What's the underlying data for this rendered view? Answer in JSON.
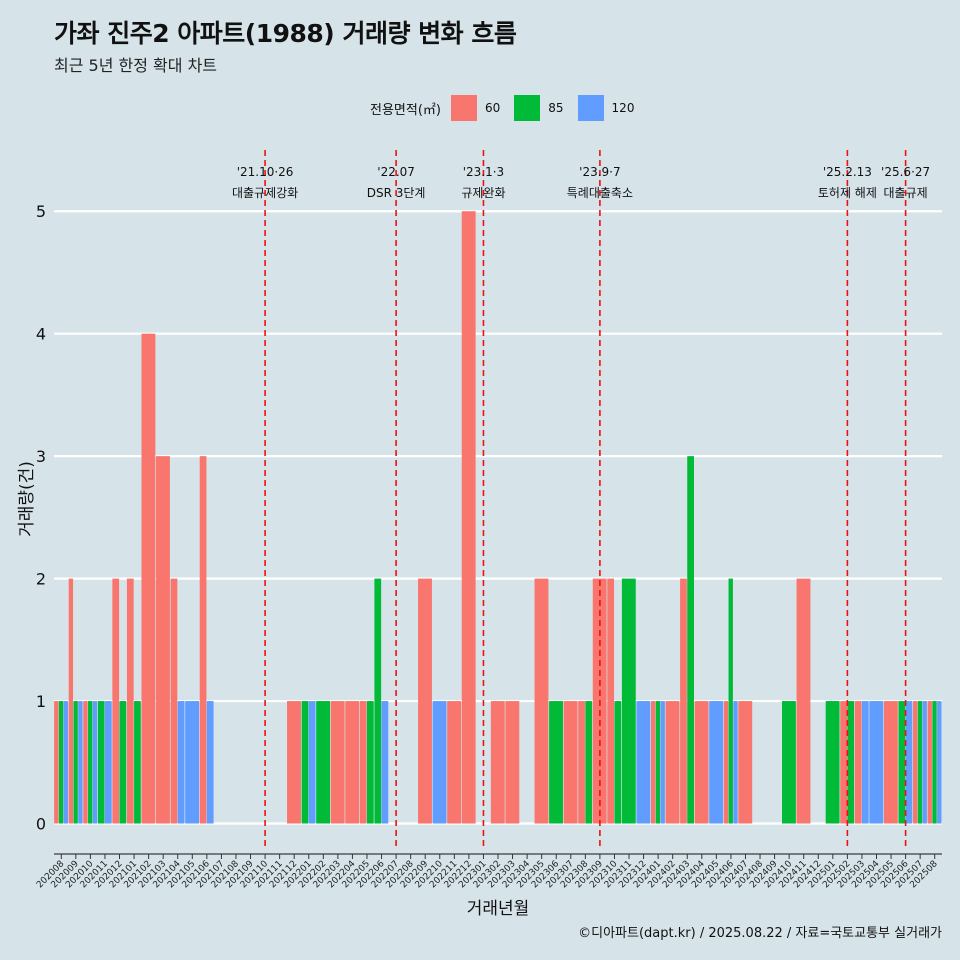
{
  "title": "가좌 진주2 아파트(1988) 거래량 변화 흐름",
  "subtitle": "최근 5년 한정 확대 차트",
  "caption": "©디아파트(dapt.kr) / 2025.08.22 / 자료=국토교통부 실거래가",
  "legend": {
    "title": "전용면적(㎡)",
    "items": [
      {
        "label": "60",
        "color": "#f8766d"
      },
      {
        "label": "85",
        "color": "#00ba38"
      },
      {
        "label": "120",
        "color": "#619cff"
      }
    ]
  },
  "chart_data": {
    "type": "bar",
    "xlabel": "거래년월",
    "ylabel": "거래량(건)",
    "ylim": [
      -0.2,
      5.5
    ],
    "yticks": [
      0,
      1,
      2,
      3,
      4,
      5
    ],
    "grid": true,
    "legend_position": "top",
    "categories": [
      "202008",
      "202009",
      "202010",
      "202011",
      "202012",
      "202101",
      "202102",
      "202103",
      "202104",
      "202105",
      "202106",
      "202107",
      "202108",
      "202109",
      "202110",
      "202111",
      "202112",
      "202201",
      "202202",
      "202203",
      "202204",
      "202205",
      "202206",
      "202207",
      "202208",
      "202209",
      "202210",
      "202211",
      "202212",
      "202301",
      "202302",
      "202303",
      "202304",
      "202305",
      "202306",
      "202307",
      "202308",
      "202309",
      "202310",
      "202311",
      "202312",
      "202401",
      "202402",
      "202403",
      "202404",
      "202405",
      "202406",
      "202407",
      "202408",
      "202409",
      "202410",
      "202411",
      "202412",
      "202501",
      "202502",
      "202503",
      "202504",
      "202505",
      "202506",
      "202507",
      "202508"
    ],
    "series": [
      {
        "name": "60",
        "color": "#f8766d",
        "values": [
          1,
          2,
          1,
          0,
          2,
          2,
          4,
          3,
          2,
          0,
          3,
          0,
          0,
          0,
          0,
          0,
          1,
          0,
          0,
          1,
          1,
          1,
          0,
          0,
          0,
          2,
          0,
          1,
          5,
          0,
          1,
          1,
          0,
          2,
          0,
          1,
          1,
          2,
          2,
          0,
          0,
          1,
          1,
          2,
          1,
          0,
          1,
          1,
          0,
          0,
          0,
          2,
          0,
          0,
          1,
          1,
          0,
          1,
          0,
          1,
          1
        ]
      },
      {
        "name": "85",
        "color": "#00ba38",
        "values": [
          1,
          1,
          1,
          1,
          1,
          1,
          0,
          0,
          0,
          0,
          0,
          0,
          0,
          0,
          0,
          0,
          0,
          1,
          1,
          0,
          0,
          1,
          2,
          0,
          0,
          0,
          0,
          0,
          0,
          0,
          0,
          0,
          0,
          0,
          1,
          0,
          1,
          0,
          1,
          2,
          0,
          1,
          0,
          3,
          0,
          0,
          2,
          0,
          0,
          0,
          1,
          0,
          0,
          1,
          1,
          0,
          0,
          0,
          1,
          1,
          1
        ]
      },
      {
        "name": "120",
        "color": "#619cff",
        "values": [
          1,
          1,
          1,
          1,
          0,
          0,
          0,
          0,
          1,
          1,
          1,
          0,
          0,
          0,
          0,
          0,
          0,
          1,
          0,
          0,
          0,
          0,
          1,
          0,
          0,
          0,
          1,
          0,
          0,
          0,
          0,
          0,
          0,
          0,
          0,
          0,
          0,
          0,
          0,
          0,
          1,
          1,
          0,
          0,
          0,
          1,
          1,
          0,
          0,
          0,
          0,
          0,
          0,
          0,
          0,
          1,
          1,
          0,
          1,
          1,
          1
        ]
      }
    ],
    "annotations": [
      {
        "x": "202110",
        "date": "'21.10·26",
        "text": "대출규제강화"
      },
      {
        "x": "202207",
        "date": "'22.07",
        "text": "DSR 3단계"
      },
      {
        "x": "202301",
        "date": "'23.1·3",
        "text": "규제완화"
      },
      {
        "x": "202309",
        "date": "'23.9·7",
        "text": "특례대출축소"
      },
      {
        "x": "202502",
        "date": "'25.2.13",
        "text": "토허제 해제"
      },
      {
        "x": "202506",
        "date": "'25.6·27",
        "text": "대출규제"
      }
    ]
  }
}
